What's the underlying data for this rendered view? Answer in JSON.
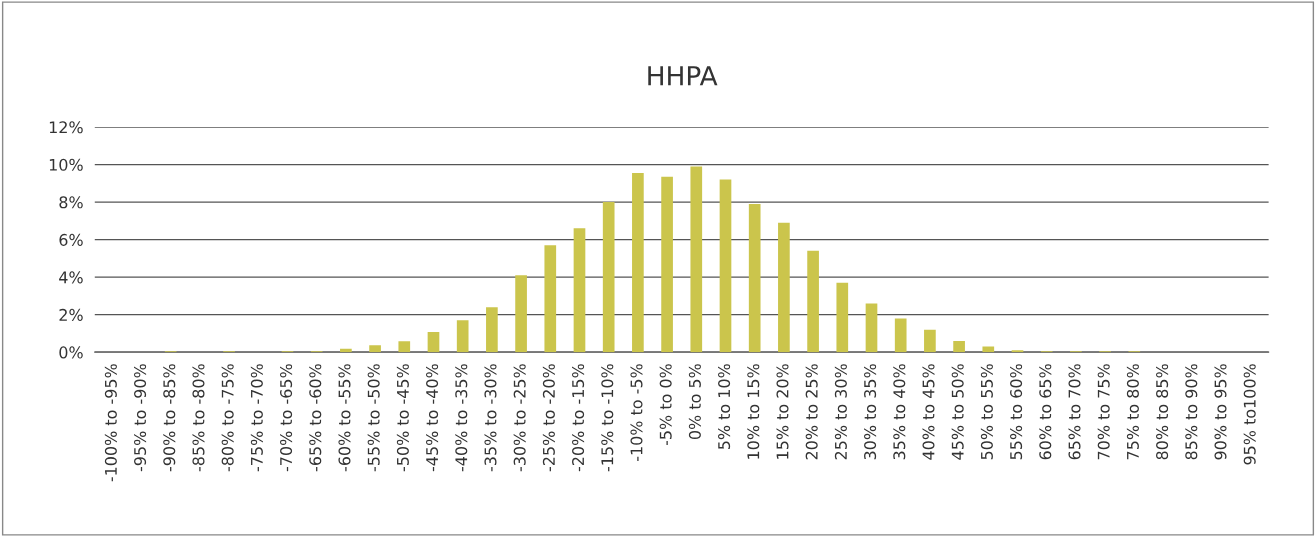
{
  "chart_data": {
    "type": "bar",
    "title": "HHPA",
    "categories": [
      "-100% to -95%",
      "-95% to -90%",
      "-90% to -85%",
      "-85% to -80%",
      "-80% to -75%",
      "-75% to -70%",
      "-70% to -65%",
      "-65% to -60%",
      "-60% to -55%",
      "-55% to -50%",
      "-50% to -45%",
      "-45% to -40%",
      "-40% to -35%",
      "-35% to -30%",
      "-30% to -25%",
      "-25% to -20%",
      "-20% to -15%",
      "-15% to -10%",
      "-10% to -5%",
      "-5% to 0%",
      "0% to 5%",
      "5% to 10%",
      "10% to 15%",
      "15% to 20%",
      "20% to 25%",
      "25% to 30%",
      "30% to 35%",
      "35% to 40%",
      "40% to 45%",
      "45% to 50%",
      "50% to 55%",
      "55% to 60%",
      "60% to 65%",
      "65% to 70%",
      "70% to 75%",
      "75% to 80%",
      "80% to 85%",
      "85% to 90%",
      "90% to 95%",
      "95% to100%"
    ],
    "values": [
      0,
      0,
      0.05,
      0,
      0.05,
      0,
      0.05,
      0.05,
      0.18,
      0.37,
      0.58,
      1.08,
      1.7,
      2.4,
      4.1,
      5.7,
      6.6,
      8.0,
      9.55,
      9.35,
      9.9,
      9.2,
      7.9,
      6.9,
      5.4,
      3.7,
      2.6,
      1.8,
      1.2,
      0.6,
      0.3,
      0.1,
      0.05,
      0.05,
      0.05,
      0.05,
      0,
      0,
      0,
      0
    ],
    "color": "#cbc54c",
    "ylim": [
      0,
      12
    ],
    "yticks": [
      {
        "value": 0,
        "label": "0%"
      },
      {
        "value": 2,
        "label": "2%"
      },
      {
        "value": 4,
        "label": "4%"
      },
      {
        "value": 6,
        "label": "6%"
      },
      {
        "value": 8,
        "label": "8%"
      },
      {
        "value": 10,
        "label": "10%"
      },
      {
        "value": 12,
        "label": "12%"
      }
    ],
    "grid": "y"
  }
}
